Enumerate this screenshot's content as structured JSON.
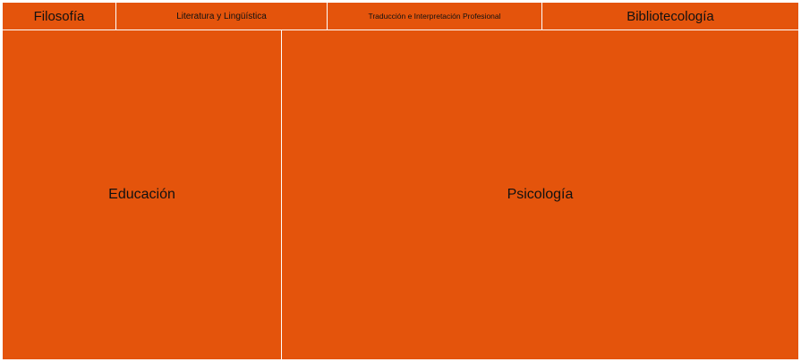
{
  "treemap": {
    "fill_color": "#e4540c",
    "text_color": "#111111",
    "tiles": [
      {
        "label": "Filosofía"
      },
      {
        "label": "Literatura y Lingüística"
      },
      {
        "label": "Traducción e Interpretación Profesional"
      },
      {
        "label": "Bibliotecología"
      },
      {
        "label": "Educación"
      },
      {
        "label": "Psicología"
      }
    ]
  }
}
